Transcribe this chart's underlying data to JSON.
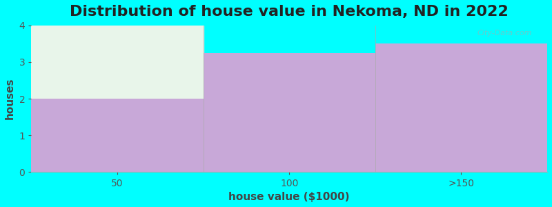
{
  "title": "Distribution of house value in Nekoma, ND in 2022",
  "xlabel": "house value ($1000)",
  "ylabel": "houses",
  "categories": [
    "50",
    "100",
    ">150"
  ],
  "values": [
    2,
    3.25,
    3.5
  ],
  "bar_color": "#c8a8d8",
  "bar_color_top_first": "#e8f5ea",
  "background_color": "#00ffff",
  "plot_bg_color": "#00ffff",
  "ylim": [
    0,
    4
  ],
  "yticks": [
    0,
    1,
    2,
    3,
    4
  ],
  "title_fontsize": 16,
  "axis_label_fontsize": 11,
  "tick_fontsize": 10,
  "figsize": [
    8.0,
    3.0
  ],
  "dpi": 100,
  "watermark": "City-Data.com"
}
